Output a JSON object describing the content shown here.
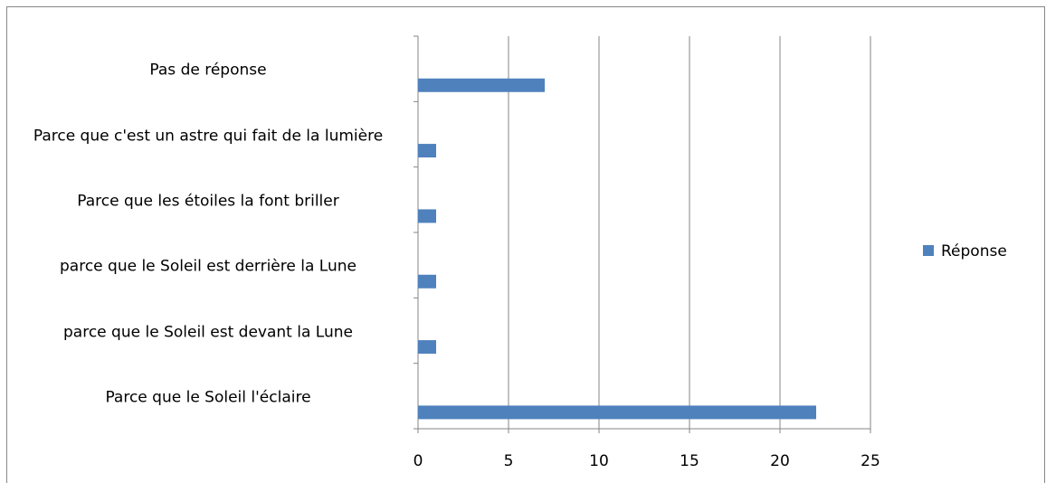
{
  "chart_data": {
    "type": "bar",
    "orientation": "horizontal",
    "categories": [
      "Pas de réponse",
      "Parce que c'est un astre qui fait de la lumière",
      "Parce que les étoiles la font briller",
      "parce que le Soleil est derrière la Lune",
      "parce que le Soleil est devant la Lune",
      "Parce que le Soleil l'éclaire"
    ],
    "series": [
      {
        "name": "Réponse",
        "color": "#4f81bd",
        "values": [
          7,
          1,
          1,
          1,
          1,
          22
        ]
      }
    ],
    "xlim": [
      0,
      25
    ],
    "xticks": [
      0,
      5,
      10,
      15,
      20,
      25
    ],
    "grid": true,
    "legend": "right"
  }
}
